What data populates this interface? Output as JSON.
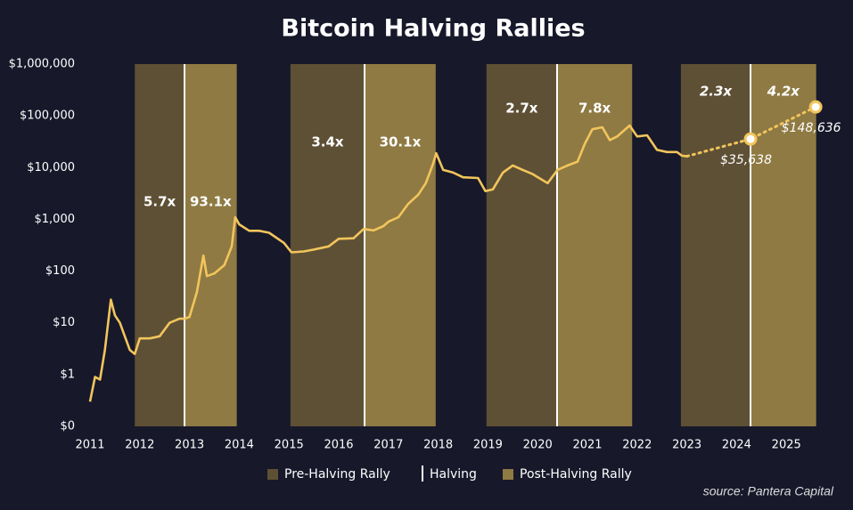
{
  "chart_data": {
    "type": "line",
    "title": "Bitcoin Halving Rallies",
    "color": "#f2c55c",
    "log_scale": true,
    "x": [
      2011.0,
      2011.1,
      2011.2,
      2011.3,
      2011.42,
      2011.5,
      2011.6,
      2011.8,
      2011.9,
      2012.0,
      2012.2,
      2012.4,
      2012.6,
      2012.8,
      2012.9,
      2013.0,
      2013.15,
      2013.28,
      2013.35,
      2013.5,
      2013.7,
      2013.85,
      2013.92,
      2014.0,
      2014.2,
      2014.4,
      2014.6,
      2014.9,
      2015.05,
      2015.3,
      2015.5,
      2015.8,
      2016.0,
      2016.3,
      2016.5,
      2016.7,
      2016.9,
      2017.0,
      2017.2,
      2017.4,
      2017.6,
      2017.75,
      2017.9,
      2017.96,
      2018.1,
      2018.3,
      2018.5,
      2018.8,
      2018.95,
      2019.1,
      2019.3,
      2019.5,
      2019.7,
      2019.9,
      2020.2,
      2020.4,
      2020.6,
      2020.8,
      2020.95,
      2021.1,
      2021.3,
      2021.45,
      2021.6,
      2021.85,
      2022.0,
      2022.2,
      2022.4,
      2022.6,
      2022.8,
      2022.9,
      2023.0
    ],
    "values": [
      0.3,
      0.9,
      0.8,
      3,
      28,
      14,
      10,
      3,
      2.5,
      5,
      5,
      5.5,
      10,
      12,
      12,
      13,
      40,
      200,
      80,
      90,
      130,
      300,
      1100,
      800,
      600,
      600,
      550,
      350,
      230,
      240,
      260,
      300,
      420,
      430,
      650,
      610,
      740,
      900,
      1100,
      2000,
      3000,
      5000,
      12000,
      19000,
      9000,
      8000,
      6500,
      6300,
      3500,
      3800,
      8000,
      11000,
      9000,
      7500,
      5000,
      9000,
      11000,
      13000,
      29000,
      55000,
      60000,
      34000,
      40000,
      65000,
      40000,
      42000,
      22000,
      20000,
      20000,
      17000,
      16500
    ],
    "projection": {
      "x": [
        2023.0,
        2024.28,
        2025.59
      ],
      "values": [
        16500,
        35638,
        148636
      ],
      "value_labels": [
        null,
        "$35,638",
        "$148,636"
      ]
    },
    "xlim": [
      2011,
      2025.6
    ],
    "xticks": [
      2011,
      2012,
      2013,
      2014,
      2015,
      2016,
      2017,
      2018,
      2019,
      2020,
      2021,
      2022,
      2023,
      2024,
      2025
    ],
    "ylim": [
      0.1,
      1000000
    ],
    "yticks": [
      {
        "value": 0.1,
        "label": "$0"
      },
      {
        "value": 1,
        "label": "$1"
      },
      {
        "value": 10,
        "label": "$10"
      },
      {
        "value": 100,
        "label": "$100"
      },
      {
        "value": 1000,
        "label": "$1,000"
      },
      {
        "value": 10000,
        "label": "$10,000"
      },
      {
        "value": 100000,
        "label": "$100,000"
      },
      {
        "value": 1000000,
        "label": "$1,000,000"
      }
    ],
    "bands": [
      {
        "x": [
          2011.9,
          2012.9
        ],
        "label": "5.7x",
        "color": "#5e5035"
      },
      {
        "x": [
          2012.9,
          2013.95
        ],
        "label": "93.1x",
        "color": "#8f7a43"
      },
      {
        "x": [
          2015.03,
          2016.52
        ],
        "label": "3.4x",
        "color": "#5e5035"
      },
      {
        "x": [
          2016.52,
          2017.95
        ],
        "label": "30.1x",
        "color": "#8f7a43"
      },
      {
        "x": [
          2018.97,
          2020.39
        ],
        "label": "2.7x",
        "color": "#5e5035"
      },
      {
        "x": [
          2020.39,
          2021.9
        ],
        "label": "7.8x",
        "color": "#8f7a43"
      },
      {
        "x": [
          2022.88,
          2024.28
        ],
        "label": "2.3x",
        "color": "#5e5035",
        "label_style": "italic"
      },
      {
        "x": [
          2024.28,
          2025.6
        ],
        "label": "4.2x",
        "color": "#8f7a43",
        "label_style": "italic"
      }
    ],
    "halvings": [
      2012.9,
      2016.52,
      2020.39,
      2024.28
    ],
    "legend": [
      {
        "label": "Pre-Halving Rally",
        "color": "#5e5035"
      },
      {
        "label": "Halving",
        "color": "#ffffff"
      },
      {
        "label": "Post-Halving Rally",
        "color": "#8f7a43"
      }
    ],
    "source": "source: Pantera Capital"
  }
}
